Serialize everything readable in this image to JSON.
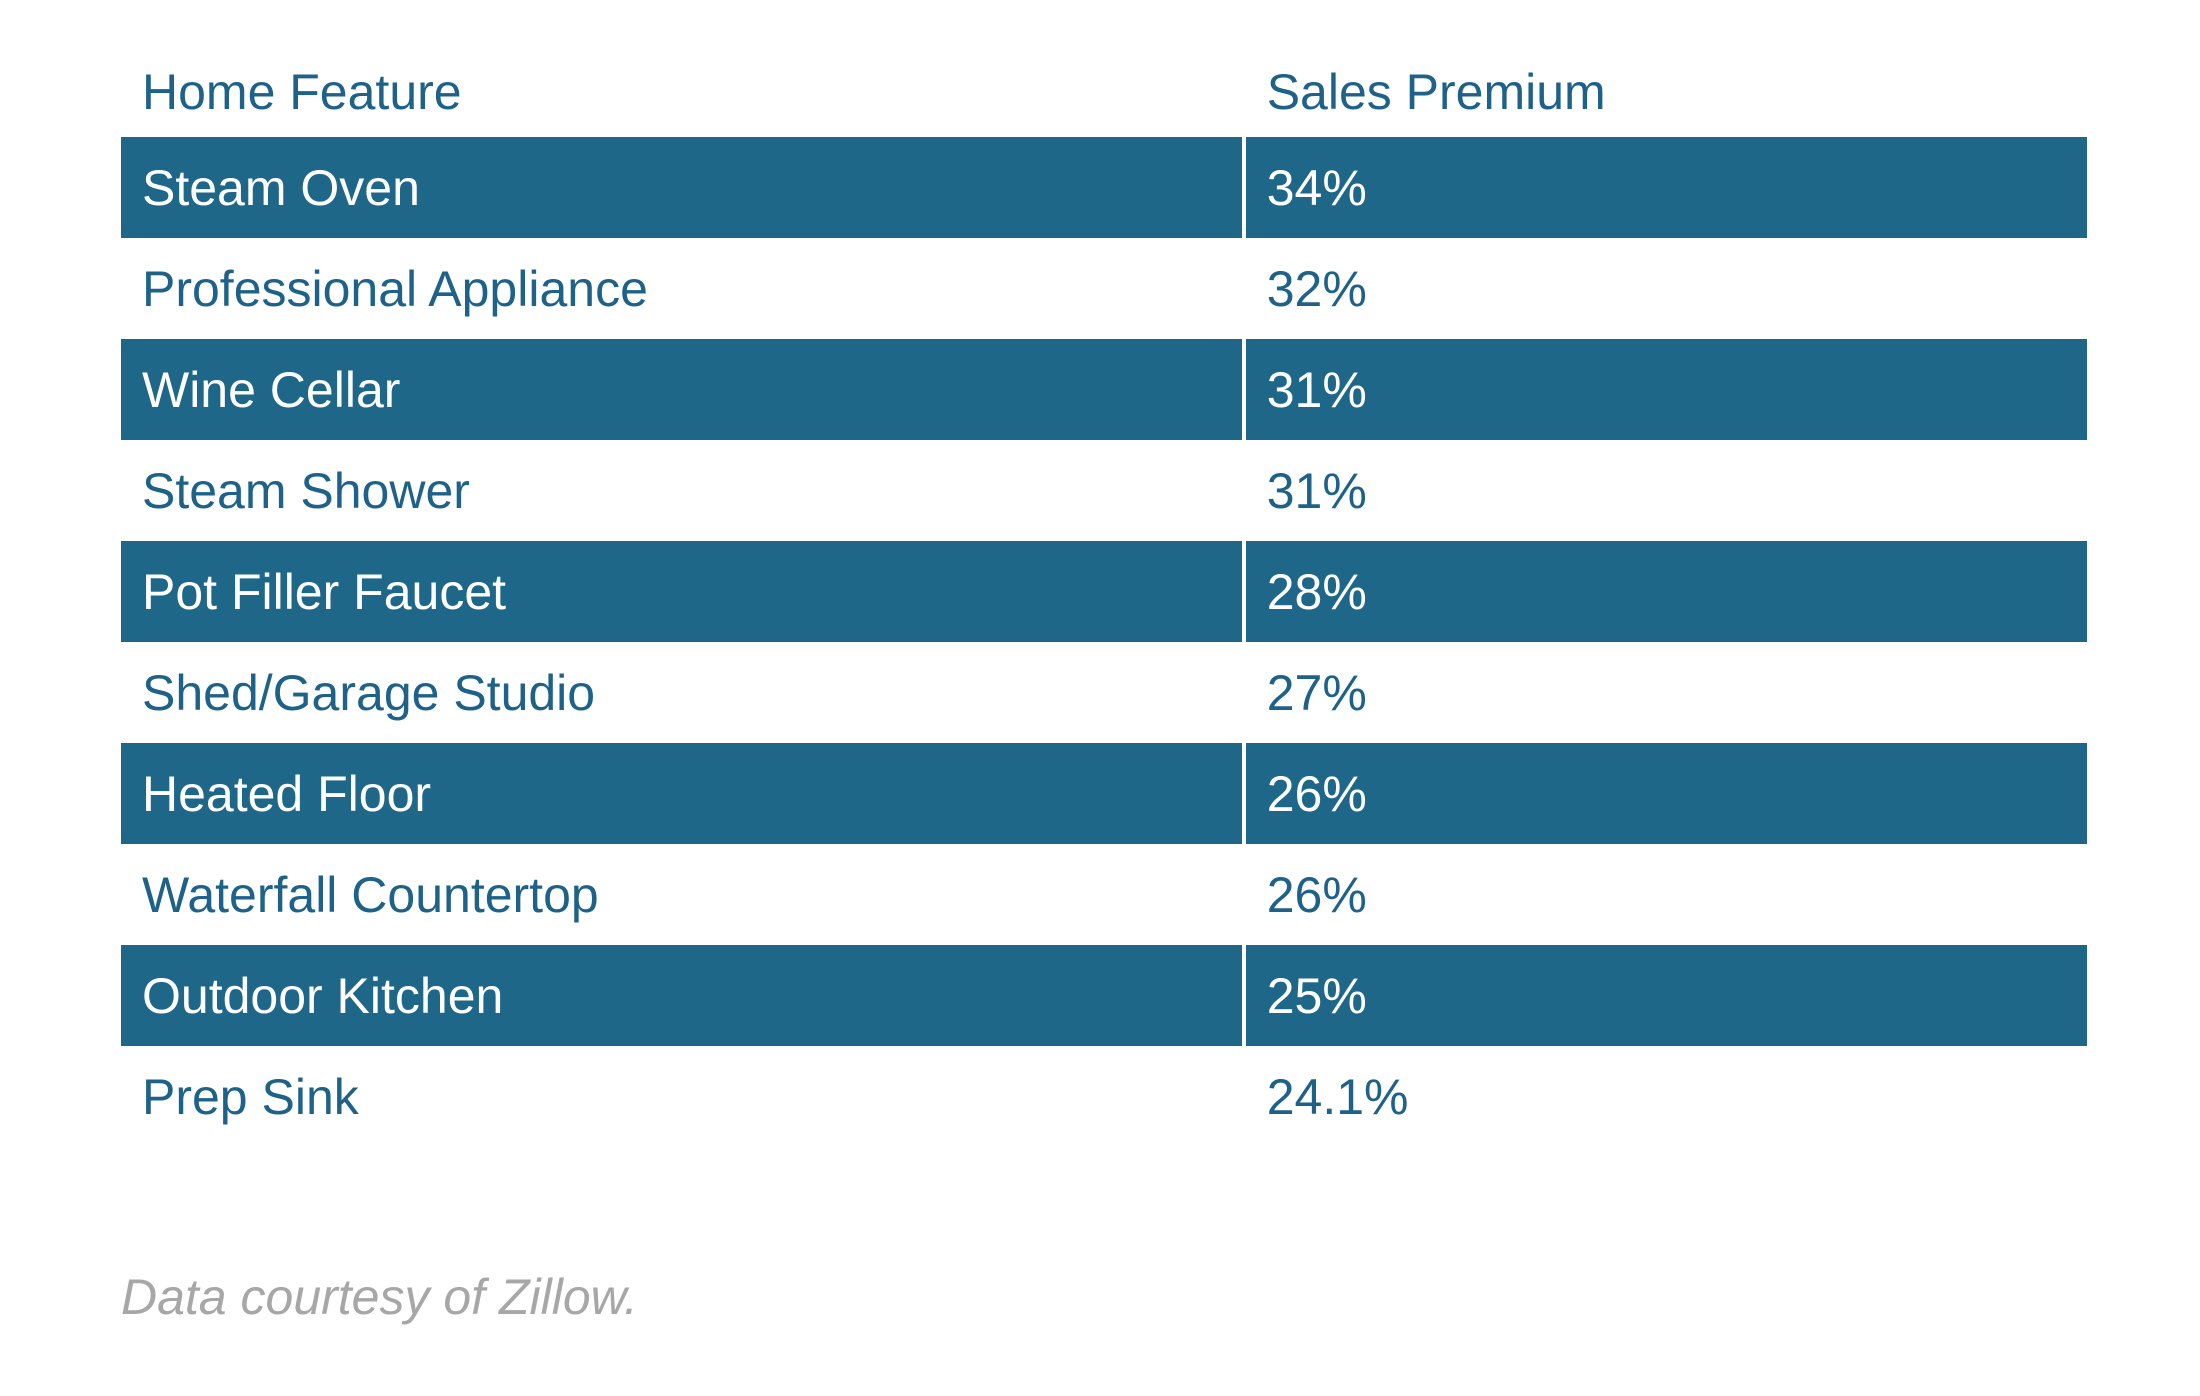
{
  "chart_data": {
    "type": "table",
    "columns": [
      "Home Feature",
      "Sales Premium"
    ],
    "rows": [
      {
        "feature": "Steam Oven",
        "premium": "34%"
      },
      {
        "feature": "Professional Appliance",
        "premium": "32%"
      },
      {
        "feature": "Wine Cellar",
        "premium": "31%"
      },
      {
        "feature": "Steam Shower",
        "premium": "31%"
      },
      {
        "feature": "Pot Filler Faucet",
        "premium": "28%"
      },
      {
        "feature": "Shed/Garage Studio",
        "premium": "27%"
      },
      {
        "feature": "Heated Floor",
        "premium": "26%"
      },
      {
        "feature": "Waterfall Countertop",
        "premium": "26%"
      },
      {
        "feature": "Outdoor Kitchen",
        "premium": "25%"
      },
      {
        "feature": "Prep Sink",
        "premium": "24.1%"
      }
    ],
    "shaded_rows": "odd (1st, 3rd, 5th, 7th, 9th)",
    "colors": {
      "header_text": "#1e6289",
      "shaded_fill": "#1e6789",
      "shaded_text": "#ffffff",
      "plain_text": "#1e6289",
      "footnote_text": "#a7a7a7"
    }
  },
  "footnote": "Data courtesy of Zillow."
}
